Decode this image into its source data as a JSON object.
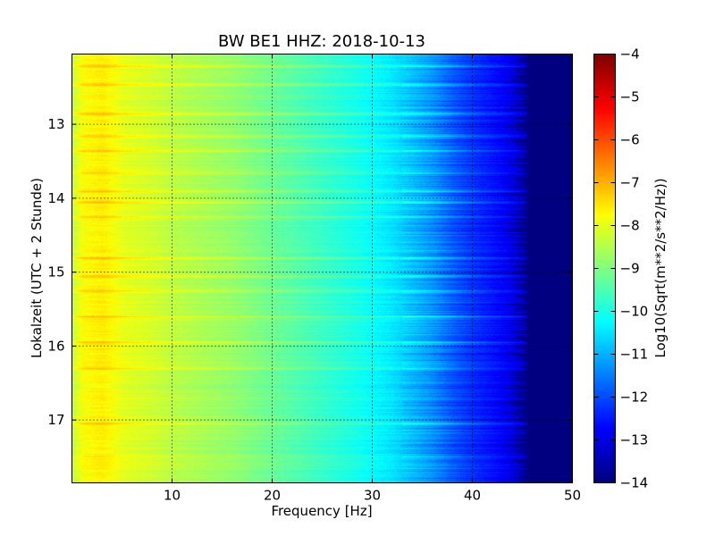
{
  "chart_data": {
    "type": "heatmap",
    "title": "BW BE1 HHZ: 2018-10-13",
    "xlabel": "Frequency [Hz]",
    "ylabel": "Lokalzeit (UTC + 2 Stunde)",
    "xlim": [
      0,
      50
    ],
    "ylim": [
      12.05,
      17.85
    ],
    "y_inverted": true,
    "x_ticks": [
      10,
      20,
      30,
      40,
      50
    ],
    "y_ticks": [
      13,
      14,
      15,
      16,
      17
    ],
    "grid": true,
    "colormap": "jet",
    "colorbar": {
      "label": "Log10(Sqrt(m**2/s**2/Hz))",
      "min": -14,
      "max": -4,
      "ticks": [
        -4,
        -5,
        -6,
        -7,
        -8,
        -9,
        -10,
        -11,
        -12,
        -13,
        -14
      ]
    },
    "spectral_profile_hz_vs_log10": [
      [
        0,
        -8.3
      ],
      [
        1,
        -7.8
      ],
      [
        2,
        -7.7
      ],
      [
        3,
        -7.6
      ],
      [
        4,
        -7.8
      ],
      [
        5,
        -8.0
      ],
      [
        8,
        -8.2
      ],
      [
        10,
        -8.4
      ],
      [
        13,
        -8.6
      ],
      [
        16,
        -8.8
      ],
      [
        20,
        -9.2
      ],
      [
        23,
        -9.5
      ],
      [
        26,
        -9.8
      ],
      [
        29,
        -10.1
      ],
      [
        32,
        -10.5
      ],
      [
        34,
        -10.9
      ],
      [
        36,
        -11.3
      ],
      [
        38,
        -11.9
      ],
      [
        40,
        -12.3
      ],
      [
        42,
        -12.6
      ],
      [
        44,
        -13.0
      ],
      [
        45,
        -13.8
      ],
      [
        46,
        -14.0
      ],
      [
        50,
        -14.0
      ]
    ],
    "bright_bands_hour": [
      12.2,
      12.45,
      12.85,
      13.15,
      13.35,
      13.65,
      13.9,
      14.05,
      14.25,
      14.8,
      15.05,
      15.25,
      15.6,
      15.95,
      16.3,
      17.05
    ]
  }
}
